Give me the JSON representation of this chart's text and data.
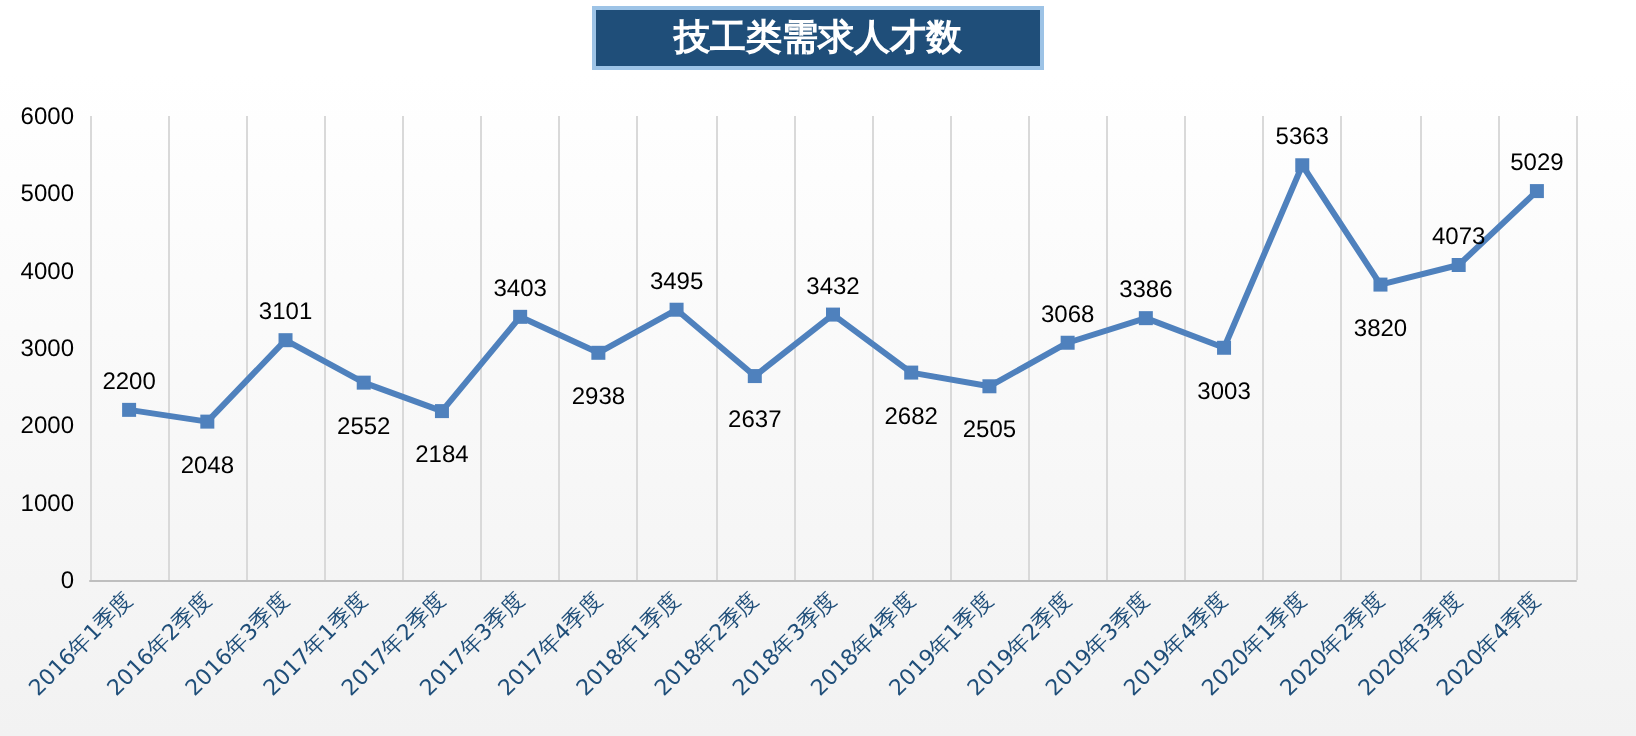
{
  "chart_data": {
    "type": "line",
    "title": "技工类需求人才数",
    "categories": [
      "2016年1季度",
      "2016年2季度",
      "2016年3季度",
      "2017年1季度",
      "2017年2季度",
      "2017年3季度",
      "2017年4季度",
      "2018年1季度",
      "2018年2季度",
      "2018年3季度",
      "2018年4季度",
      "2019年1季度",
      "2019年2季度",
      "2019年3季度",
      "2019年4季度",
      "2020年1季度",
      "2020年2季度",
      "2020年3季度",
      "2020年4季度"
    ],
    "series": [
      {
        "color": "#4f81bd",
        "values": [
          2200,
          2048,
          3101,
          2552,
          2184,
          3403,
          2938,
          3495,
          2637,
          3432,
          2682,
          2505,
          3068,
          3386,
          3003,
          5363,
          3820,
          4073,
          5029
        ]
      }
    ],
    "ylim": [
      0,
      6000
    ],
    "yticks": [
      0,
      1000,
      2000,
      3000,
      4000,
      5000,
      6000
    ],
    "grid": "x",
    "marker": "square",
    "line_style": "solid",
    "data_labels": true
  }
}
